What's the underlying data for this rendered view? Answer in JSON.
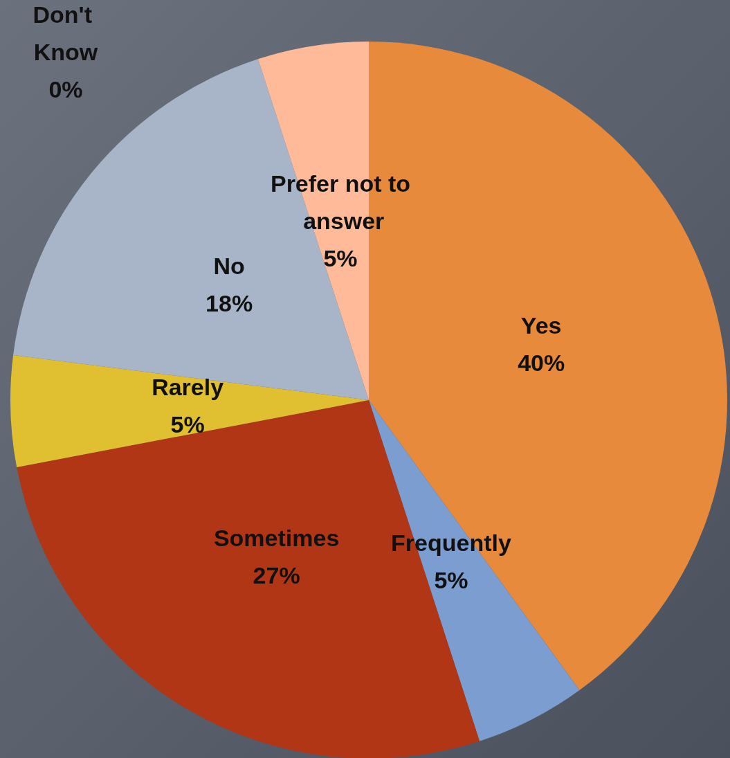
{
  "chart_data": {
    "type": "pie",
    "categories": [
      "Yes",
      "Frequently",
      "Sometimes",
      "Rarely",
      "No",
      "Don't Know",
      "Prefer not to answer"
    ],
    "values": [
      40,
      5,
      27,
      5,
      18,
      0,
      5
    ],
    "value_labels": [
      "40%",
      "5%",
      "27%",
      "5%",
      "18%",
      "0%",
      "5%"
    ],
    "colors": [
      "#e88a3c",
      "#7b9dd0",
      "#b03616",
      "#e0c030",
      "#a8b4c8",
      "#8a94a6",
      "#ffbb99"
    ],
    "legend": false
  }
}
